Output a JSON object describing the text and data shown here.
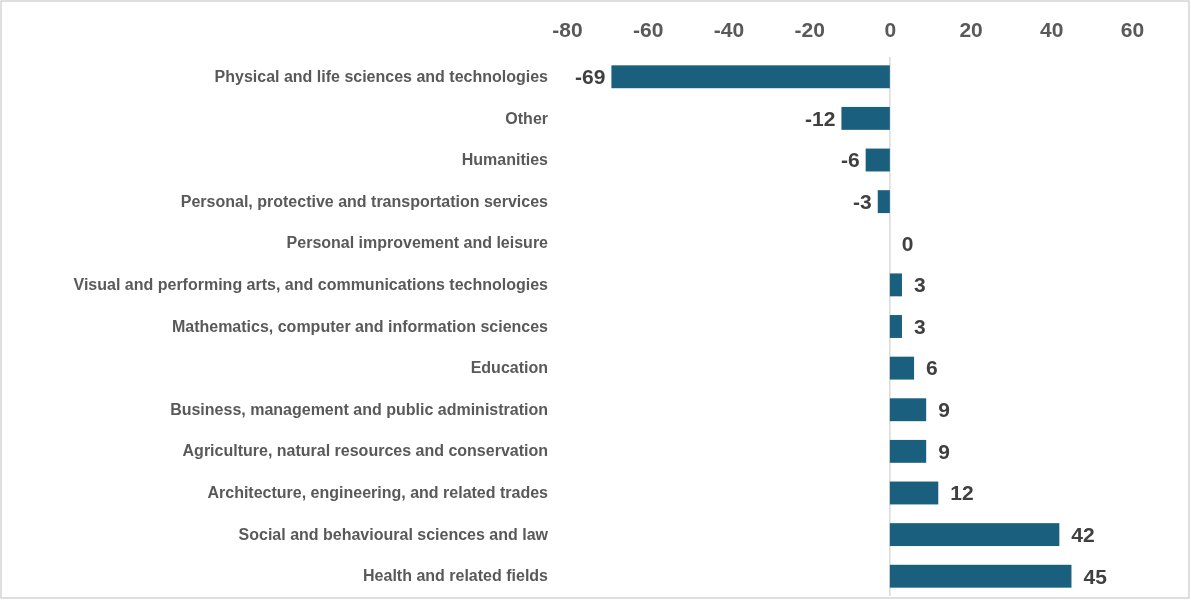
{
  "chart_data": {
    "type": "bar",
    "orientation": "horizontal",
    "categories": [
      "Physical and life sciences and technologies",
      "Other",
      "Humanities",
      "Personal, protective and transportation services",
      "Personal improvement and leisure",
      "Visual and performing arts, and communications technologies",
      "Mathematics, computer and information sciences",
      "Education",
      "Business, management and public administration",
      "Agriculture, natural resources and conservation",
      "Architecture, engineering, and related trades",
      "Social and behavioural sciences and law",
      "Health and related fields"
    ],
    "values": [
      -69,
      -12,
      -6,
      -3,
      0,
      3,
      3,
      6,
      9,
      9,
      12,
      42,
      45
    ],
    "color": "#1b5f7f",
    "xlim": [
      -80,
      60
    ],
    "xticks": [
      -80,
      -60,
      -40,
      -20,
      0,
      20,
      40,
      60
    ],
    "data_labels": true
  }
}
